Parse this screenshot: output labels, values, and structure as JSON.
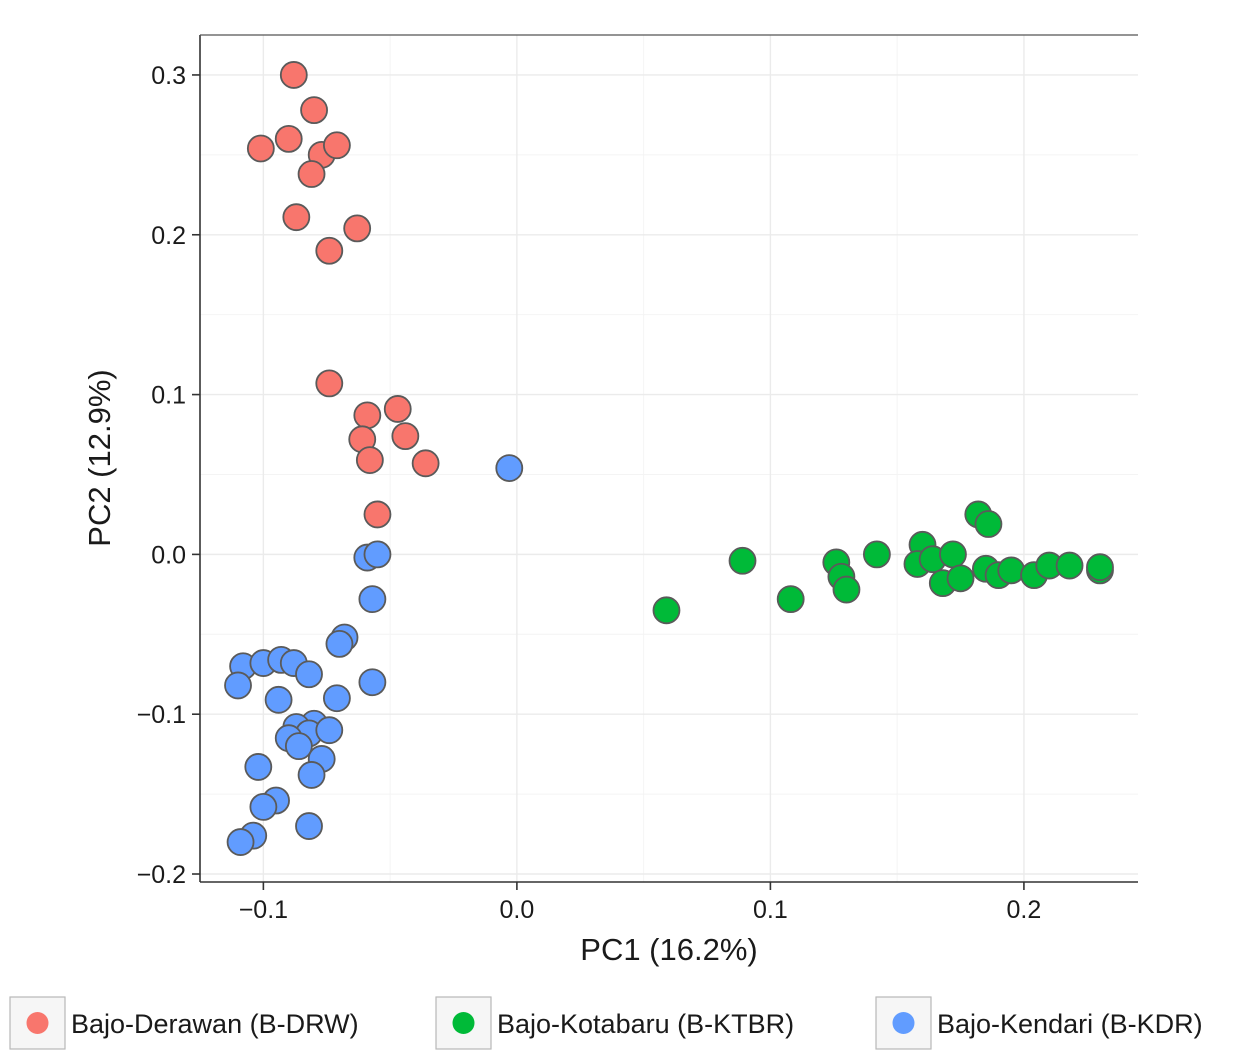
{
  "chart_data": {
    "type": "scatter",
    "title": "",
    "xlabel": "PC1 (16.2%)",
    "ylabel": "PC2 (12.9%)",
    "xlim": [
      -0.125,
      0.245
    ],
    "ylim": [
      -0.205,
      0.325
    ],
    "xticks": [
      -0.1,
      0.0,
      0.1,
      0.2
    ],
    "xtick_labels": [
      "−0.1",
      "0.0",
      "0.1",
      "0.2"
    ],
    "yticks": [
      -0.2,
      -0.1,
      0.0,
      0.1,
      0.2,
      0.3
    ],
    "ytick_labels": [
      "−0.2",
      "−0.1",
      "0.0",
      "0.1",
      "0.2",
      "0.3"
    ],
    "grid": true,
    "legend_position": "bottom",
    "series": [
      {
        "name": "Bajo-Derawan (B-DRW)",
        "color": "#f8766d",
        "points": [
          [
            -0.088,
            0.3
          ],
          [
            -0.08,
            0.278
          ],
          [
            -0.101,
            0.254
          ],
          [
            -0.09,
            0.26
          ],
          [
            -0.077,
            0.25
          ],
          [
            -0.071,
            0.256
          ],
          [
            -0.081,
            0.238
          ],
          [
            -0.087,
            0.211
          ],
          [
            -0.063,
            0.204
          ],
          [
            -0.074,
            0.19
          ],
          [
            -0.074,
            0.107
          ],
          [
            -0.059,
            0.087
          ],
          [
            -0.047,
            0.091
          ],
          [
            -0.061,
            0.072
          ],
          [
            -0.044,
            0.074
          ],
          [
            -0.058,
            0.059
          ],
          [
            -0.036,
            0.057
          ],
          [
            -0.055,
            0.025
          ]
        ]
      },
      {
        "name": "Bajo-Kotabaru (B-KTBR)",
        "color": "#00ba38",
        "points": [
          [
            0.059,
            -0.035
          ],
          [
            0.089,
            -0.004
          ],
          [
            0.108,
            -0.028
          ],
          [
            0.126,
            -0.005
          ],
          [
            0.128,
            -0.014
          ],
          [
            0.13,
            -0.022
          ],
          [
            0.142,
            0.0
          ],
          [
            0.16,
            0.006
          ],
          [
            0.158,
            -0.006
          ],
          [
            0.164,
            -0.003
          ],
          [
            0.172,
            0.0
          ],
          [
            0.168,
            -0.018
          ],
          [
            0.175,
            -0.015
          ],
          [
            0.182,
            0.025
          ],
          [
            0.186,
            0.019
          ],
          [
            0.185,
            -0.009
          ],
          [
            0.19,
            -0.013
          ],
          [
            0.195,
            -0.01
          ],
          [
            0.204,
            -0.013
          ],
          [
            0.21,
            -0.007
          ],
          [
            0.218,
            -0.007
          ],
          [
            0.23,
            -0.01
          ],
          [
            0.23,
            -0.008
          ]
        ]
      },
      {
        "name": "Bajo-Kendari (B-KDR)",
        "color": "#619cff",
        "points": [
          [
            -0.003,
            0.054
          ],
          [
            -0.059,
            -0.002
          ],
          [
            -0.055,
            0.0
          ],
          [
            -0.057,
            -0.028
          ],
          [
            -0.068,
            -0.052
          ],
          [
            -0.07,
            -0.056
          ],
          [
            -0.071,
            -0.09
          ],
          [
            -0.057,
            -0.08
          ],
          [
            -0.108,
            -0.07
          ],
          [
            -0.1,
            -0.068
          ],
          [
            -0.093,
            -0.066
          ],
          [
            -0.088,
            -0.068
          ],
          [
            -0.082,
            -0.075
          ],
          [
            -0.11,
            -0.082
          ],
          [
            -0.094,
            -0.091
          ],
          [
            -0.08,
            -0.106
          ],
          [
            -0.087,
            -0.108
          ],
          [
            -0.082,
            -0.112
          ],
          [
            -0.09,
            -0.115
          ],
          [
            -0.074,
            -0.11
          ],
          [
            -0.086,
            -0.12
          ],
          [
            -0.102,
            -0.133
          ],
          [
            -0.077,
            -0.128
          ],
          [
            -0.081,
            -0.138
          ],
          [
            -0.095,
            -0.154
          ],
          [
            -0.1,
            -0.158
          ],
          [
            -0.082,
            -0.17
          ],
          [
            -0.104,
            -0.176
          ],
          [
            -0.109,
            -0.18
          ]
        ]
      }
    ]
  }
}
